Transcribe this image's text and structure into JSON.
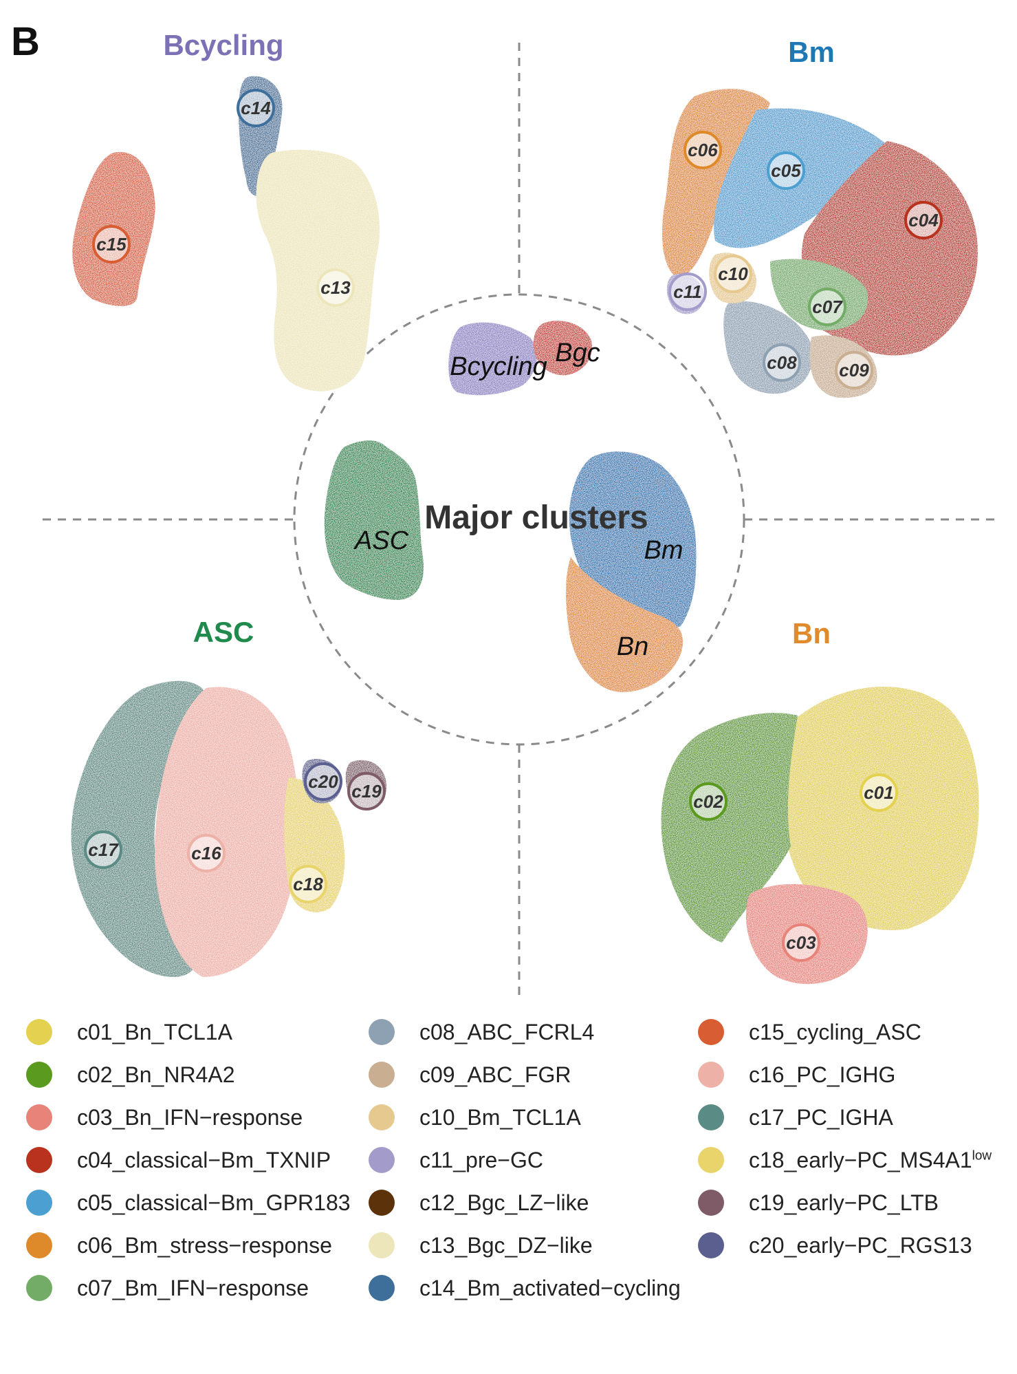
{
  "panel_label": "B",
  "center_title": "Major clusters",
  "center_clusters": [
    {
      "id": "Bcycling",
      "label": "Bcycling",
      "color": "#8e83c6"
    },
    {
      "id": "Bgc",
      "label": "Bgc",
      "color": "#c6382a"
    },
    {
      "id": "ASC",
      "label": "ASC",
      "color": "#1f8a4c"
    },
    {
      "id": "Bm",
      "label": "Bm",
      "color": "#1f77b4"
    },
    {
      "id": "Bn",
      "label": "Bn",
      "color": "#e08a2b"
    }
  ],
  "quadrants": {
    "top_left": {
      "title": "Bcycling",
      "title_color": "#7b71b4",
      "clusters": [
        "c14",
        "c15",
        "c13"
      ]
    },
    "top_right": {
      "title": "Bm",
      "title_color": "#1f77b4",
      "clusters": [
        "c06",
        "c05",
        "c04",
        "c10",
        "c11",
        "c07",
        "c08",
        "c09"
      ]
    },
    "bottom_left": {
      "title": "ASC",
      "title_color": "#1f8a4c",
      "clusters": [
        "c17",
        "c16",
        "c18",
        "c20",
        "c19"
      ]
    },
    "bottom_right": {
      "title": "Bn",
      "title_color": "#e08a2b",
      "clusters": [
        "c02",
        "c01",
        "c03"
      ]
    }
  },
  "legend": [
    {
      "code": "c01",
      "label": "c01_Bn_TCL1A",
      "color": "#e3d14f"
    },
    {
      "code": "c02",
      "label": "c02_Bn_NR4A2",
      "color": "#5a9a1e"
    },
    {
      "code": "c03",
      "label": "c03_Bn_IFN−response",
      "color": "#e8837a"
    },
    {
      "code": "c04",
      "label": "c04_classical−Bm_TXNIP",
      "color": "#b8321d"
    },
    {
      "code": "c05",
      "label": "c05_classical−Bm_GPR183",
      "color": "#4b9fd1"
    },
    {
      "code": "c06",
      "label": "c06_Bm_stress−response",
      "color": "#de8a2a"
    },
    {
      "code": "c07",
      "label": "c07_Bm_IFN−response",
      "color": "#72ac66"
    },
    {
      "code": "c08",
      "label": "c08_ABC_FCRL4",
      "color": "#8ea1b3"
    },
    {
      "code": "c09",
      "label": "c09_ABC_FGR",
      "color": "#c9ae91"
    },
    {
      "code": "c10",
      "label": "c10_Bm_TCL1A",
      "color": "#e6c98f"
    },
    {
      "code": "c11",
      "label": "c11_pre−GC",
      "color": "#a39ccb"
    },
    {
      "code": "c12",
      "label": "c12_Bgc_LZ−like",
      "color": "#5b3209"
    },
    {
      "code": "c13",
      "label": "c13_Bgc_DZ−like",
      "color": "#ede6bb"
    },
    {
      "code": "c14",
      "label": "c14_Bm_activated−cycling",
      "color": "#3e6f9a"
    },
    {
      "code": "c15",
      "label": "c15_cycling_ASC",
      "color": "#d85d33"
    },
    {
      "code": "c16",
      "label": "c16_PC_IGHG",
      "color": "#eeb1a8"
    },
    {
      "code": "c17",
      "label": "c17_PC_IGHA",
      "color": "#5a8b84"
    },
    {
      "code": "c18",
      "label": "c18_early−PC_MS4A1",
      "sup": "low",
      "color": "#e8d46a"
    },
    {
      "code": "c19",
      "label": "c19_early−PC_LTB",
      "color": "#7e5b67"
    },
    {
      "code": "c20",
      "label": "c20_early−PC_RGS13",
      "color": "#5a5f8f"
    }
  ]
}
